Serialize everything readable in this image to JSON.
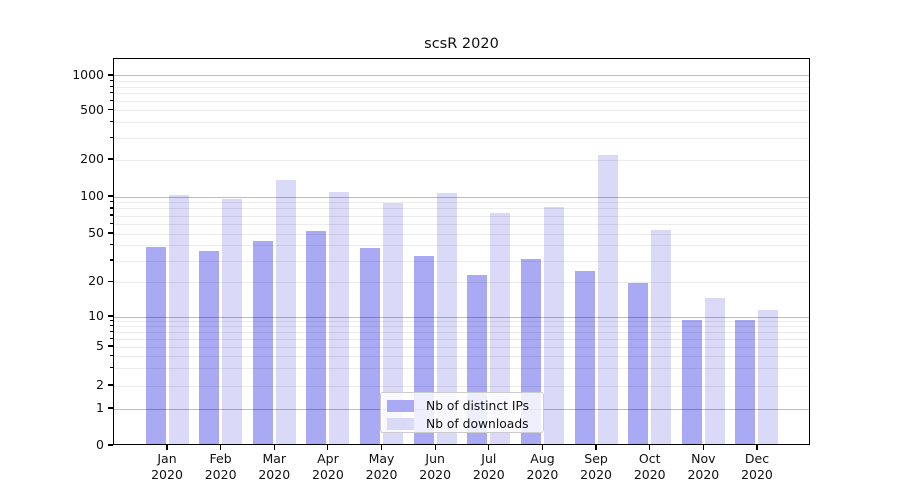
{
  "figure_title": "scsR 2020",
  "chart_data": {
    "type": "bar",
    "title": "scsR 2020",
    "categories": [
      "Jan",
      "Feb",
      "Mar",
      "Apr",
      "May",
      "Jun",
      "Jul",
      "Aug",
      "Sep",
      "Oct",
      "Nov",
      "Dec"
    ],
    "category_year": "2020",
    "series": [
      {
        "name": "Nb of distinct IPs",
        "color": "#a9a9f4",
        "values": [
          38,
          35,
          42,
          51,
          37,
          32,
          22,
          30,
          24,
          19,
          9,
          9
        ]
      },
      {
        "name": "Nb of downloads",
        "color": "#dadaf8",
        "values": [
          100,
          92,
          133,
          105,
          86,
          103,
          72,
          80,
          210,
          52,
          14,
          11
        ]
      }
    ],
    "xlabel": "",
    "ylabel": "",
    "yscale": "log (symlog-like, linear segment near 0)",
    "ylim": [
      0,
      1400
    ],
    "ytick_values": [
      0,
      1,
      2,
      5,
      10,
      20,
      50,
      100,
      200,
      500,
      1000
    ],
    "ytick_labels": [
      "0",
      "1",
      "2",
      "5",
      "10",
      "20",
      "50",
      "100",
      "200",
      "500",
      "1000"
    ],
    "grid": true,
    "grid_major_values": [
      1,
      10,
      100,
      1000
    ],
    "grid_minor_values": [
      2,
      3,
      4,
      5,
      6,
      7,
      8,
      9,
      20,
      30,
      40,
      50,
      60,
      70,
      80,
      90,
      200,
      300,
      400,
      500,
      600,
      700,
      800,
      900
    ],
    "legend": {
      "entries": [
        "Nb of distinct IPs",
        "Nb of downloads"
      ],
      "position": "lower center"
    }
  }
}
